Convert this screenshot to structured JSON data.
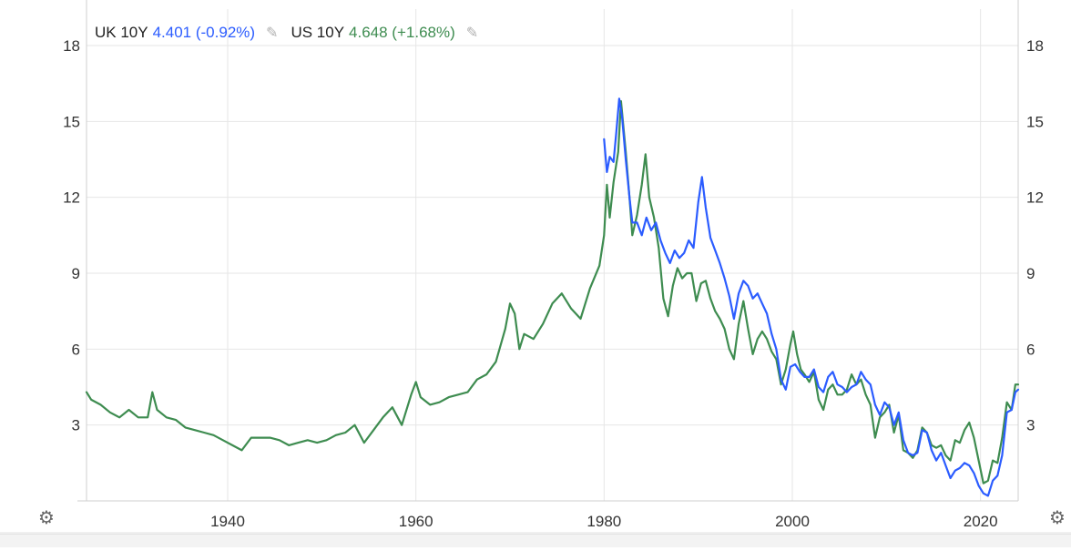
{
  "legend": {
    "series_a_name": "UK 10Y",
    "series_a_value": "4.401 (-0.92%)",
    "series_b_name": "US 10Y",
    "series_b_value": "4.648 (+1.68%)",
    "edit_icon": "pencil-icon"
  },
  "settings_icon": "gear-icon",
  "colors": {
    "uk": "#2b5cff",
    "us": "#3e8c50",
    "grid": "#e6e6e6",
    "axis_text": "#333333",
    "background": "#ffffff",
    "bottom_bar": "#f3f3f3"
  },
  "chart_data": {
    "type": "line",
    "title": "",
    "xlabel": "",
    "ylabel": "",
    "xlim": [
      1925,
      2024
    ],
    "ylim": [
      0,
      18
    ],
    "x_ticks": [
      "1940",
      "1960",
      "1980",
      "2000",
      "2020"
    ],
    "y_ticks_left": [
      "18",
      "15",
      "12",
      "9",
      "6",
      "3"
    ],
    "y_ticks_right": [
      "18",
      "15",
      "12",
      "9",
      "6",
      "3"
    ],
    "grid": true,
    "legend_position": "top-left",
    "series": [
      {
        "name": "UK 10Y",
        "color": "#2b5cff",
        "points": [
          [
            1980.0,
            14.3
          ],
          [
            1980.3,
            13.0
          ],
          [
            1980.6,
            13.6
          ],
          [
            1981.0,
            13.4
          ],
          [
            1981.3,
            14.6
          ],
          [
            1981.6,
            15.9
          ],
          [
            1981.9,
            15.2
          ],
          [
            1982.3,
            13.5
          ],
          [
            1982.7,
            12.0
          ],
          [
            1983.0,
            11.0
          ],
          [
            1983.5,
            11.0
          ],
          [
            1984.0,
            10.5
          ],
          [
            1984.5,
            11.2
          ],
          [
            1985.0,
            10.7
          ],
          [
            1985.5,
            11.0
          ],
          [
            1986.0,
            10.3
          ],
          [
            1986.5,
            9.8
          ],
          [
            1987.0,
            9.4
          ],
          [
            1987.5,
            9.9
          ],
          [
            1988.0,
            9.6
          ],
          [
            1988.5,
            9.8
          ],
          [
            1989.0,
            10.3
          ],
          [
            1989.5,
            10.0
          ],
          [
            1990.0,
            11.8
          ],
          [
            1990.4,
            12.8
          ],
          [
            1990.8,
            11.6
          ],
          [
            1991.3,
            10.4
          ],
          [
            1991.8,
            9.9
          ],
          [
            1992.3,
            9.4
          ],
          [
            1992.8,
            8.8
          ],
          [
            1993.3,
            8.1
          ],
          [
            1993.8,
            7.2
          ],
          [
            1994.3,
            8.2
          ],
          [
            1994.8,
            8.7
          ],
          [
            1995.3,
            8.5
          ],
          [
            1995.8,
            8.0
          ],
          [
            1996.3,
            8.2
          ],
          [
            1996.8,
            7.8
          ],
          [
            1997.3,
            7.4
          ],
          [
            1997.8,
            6.6
          ],
          [
            1998.3,
            6.0
          ],
          [
            1998.8,
            4.8
          ],
          [
            1999.3,
            4.4
          ],
          [
            1999.8,
            5.3
          ],
          [
            2000.3,
            5.4
          ],
          [
            2000.8,
            5.1
          ],
          [
            2001.3,
            4.9
          ],
          [
            2001.8,
            4.9
          ],
          [
            2002.3,
            5.2
          ],
          [
            2002.8,
            4.5
          ],
          [
            2003.3,
            4.3
          ],
          [
            2003.8,
            4.9
          ],
          [
            2004.3,
            5.1
          ],
          [
            2004.8,
            4.6
          ],
          [
            2005.3,
            4.5
          ],
          [
            2005.8,
            4.3
          ],
          [
            2006.3,
            4.5
          ],
          [
            2006.8,
            4.6
          ],
          [
            2007.3,
            5.1
          ],
          [
            2007.8,
            4.8
          ],
          [
            2008.3,
            4.6
          ],
          [
            2008.8,
            3.8
          ],
          [
            2009.3,
            3.4
          ],
          [
            2009.8,
            3.9
          ],
          [
            2010.3,
            3.7
          ],
          [
            2010.8,
            3.0
          ],
          [
            2011.3,
            3.5
          ],
          [
            2011.8,
            2.4
          ],
          [
            2012.3,
            1.9
          ],
          [
            2012.8,
            1.8
          ],
          [
            2013.3,
            1.9
          ],
          [
            2013.8,
            2.8
          ],
          [
            2014.3,
            2.7
          ],
          [
            2014.8,
            2.0
          ],
          [
            2015.3,
            1.6
          ],
          [
            2015.8,
            1.9
          ],
          [
            2016.3,
            1.4
          ],
          [
            2016.8,
            0.9
          ],
          [
            2017.3,
            1.2
          ],
          [
            2017.8,
            1.3
          ],
          [
            2018.3,
            1.5
          ],
          [
            2018.8,
            1.4
          ],
          [
            2019.3,
            1.1
          ],
          [
            2019.8,
            0.6
          ],
          [
            2020.3,
            0.3
          ],
          [
            2020.8,
            0.2
          ],
          [
            2021.3,
            0.8
          ],
          [
            2021.8,
            1.0
          ],
          [
            2022.3,
            1.8
          ],
          [
            2022.8,
            3.5
          ],
          [
            2023.3,
            3.6
          ],
          [
            2023.7,
            4.3
          ],
          [
            2024.0,
            4.4
          ]
        ]
      },
      {
        "name": "US 10Y",
        "color": "#3e8c50",
        "points": [
          [
            1925.0,
            4.3
          ],
          [
            1925.5,
            4.0
          ],
          [
            1926.5,
            3.8
          ],
          [
            1927.5,
            3.5
          ],
          [
            1928.5,
            3.3
          ],
          [
            1929.5,
            3.6
          ],
          [
            1930.5,
            3.3
          ],
          [
            1931.5,
            3.3
          ],
          [
            1932.0,
            4.3
          ],
          [
            1932.5,
            3.6
          ],
          [
            1933.5,
            3.3
          ],
          [
            1934.5,
            3.2
          ],
          [
            1935.5,
            2.9
          ],
          [
            1936.5,
            2.8
          ],
          [
            1937.5,
            2.7
          ],
          [
            1938.5,
            2.6
          ],
          [
            1939.5,
            2.4
          ],
          [
            1940.5,
            2.2
          ],
          [
            1941.5,
            2.0
          ],
          [
            1942.5,
            2.5
          ],
          [
            1943.5,
            2.5
          ],
          [
            1944.5,
            2.5
          ],
          [
            1945.5,
            2.4
          ],
          [
            1946.5,
            2.2
          ],
          [
            1947.5,
            2.3
          ],
          [
            1948.5,
            2.4
          ],
          [
            1949.5,
            2.3
          ],
          [
            1950.5,
            2.4
          ],
          [
            1951.5,
            2.6
          ],
          [
            1952.5,
            2.7
          ],
          [
            1953.5,
            3.0
          ],
          [
            1954.5,
            2.3
          ],
          [
            1955.5,
            2.8
          ],
          [
            1956.5,
            3.3
          ],
          [
            1957.5,
            3.7
          ],
          [
            1958.5,
            3.0
          ],
          [
            1959.5,
            4.2
          ],
          [
            1960.0,
            4.7
          ],
          [
            1960.5,
            4.1
          ],
          [
            1961.5,
            3.8
          ],
          [
            1962.5,
            3.9
          ],
          [
            1963.5,
            4.1
          ],
          [
            1964.5,
            4.2
          ],
          [
            1965.5,
            4.3
          ],
          [
            1966.5,
            4.8
          ],
          [
            1967.5,
            5.0
          ],
          [
            1968.5,
            5.5
          ],
          [
            1969.5,
            6.8
          ],
          [
            1970.0,
            7.8
          ],
          [
            1970.5,
            7.4
          ],
          [
            1971.0,
            6.0
          ],
          [
            1971.5,
            6.6
          ],
          [
            1972.5,
            6.4
          ],
          [
            1973.5,
            7.0
          ],
          [
            1974.5,
            7.8
          ],
          [
            1975.5,
            8.2
          ],
          [
            1976.5,
            7.6
          ],
          [
            1977.5,
            7.2
          ],
          [
            1978.5,
            8.4
          ],
          [
            1979.5,
            9.3
          ],
          [
            1980.0,
            10.5
          ],
          [
            1980.3,
            12.5
          ],
          [
            1980.6,
            11.2
          ],
          [
            1981.0,
            12.6
          ],
          [
            1981.5,
            13.8
          ],
          [
            1981.8,
            15.8
          ],
          [
            1982.3,
            13.8
          ],
          [
            1982.7,
            12.0
          ],
          [
            1983.0,
            10.5
          ],
          [
            1983.5,
            11.3
          ],
          [
            1984.0,
            12.5
          ],
          [
            1984.4,
            13.7
          ],
          [
            1984.8,
            12.0
          ],
          [
            1985.3,
            11.2
          ],
          [
            1985.8,
            10.0
          ],
          [
            1986.3,
            8.0
          ],
          [
            1986.8,
            7.3
          ],
          [
            1987.3,
            8.5
          ],
          [
            1987.8,
            9.2
          ],
          [
            1988.3,
            8.8
          ],
          [
            1988.8,
            9.0
          ],
          [
            1989.3,
            9.0
          ],
          [
            1989.8,
            7.9
          ],
          [
            1990.3,
            8.6
          ],
          [
            1990.8,
            8.7
          ],
          [
            1991.3,
            8.0
          ],
          [
            1991.8,
            7.5
          ],
          [
            1992.3,
            7.2
          ],
          [
            1992.8,
            6.8
          ],
          [
            1993.3,
            6.0
          ],
          [
            1993.8,
            5.6
          ],
          [
            1994.3,
            7.0
          ],
          [
            1994.8,
            7.9
          ],
          [
            1995.3,
            6.8
          ],
          [
            1995.8,
            5.8
          ],
          [
            1996.3,
            6.4
          ],
          [
            1996.8,
            6.7
          ],
          [
            1997.3,
            6.4
          ],
          [
            1997.8,
            5.9
          ],
          [
            1998.3,
            5.6
          ],
          [
            1998.8,
            4.6
          ],
          [
            1999.3,
            5.2
          ],
          [
            1999.8,
            6.2
          ],
          [
            2000.1,
            6.7
          ],
          [
            2000.5,
            5.8
          ],
          [
            2000.9,
            5.2
          ],
          [
            2001.3,
            5.0
          ],
          [
            2001.8,
            4.7
          ],
          [
            2002.3,
            5.1
          ],
          [
            2002.8,
            4.0
          ],
          [
            2003.3,
            3.6
          ],
          [
            2003.8,
            4.4
          ],
          [
            2004.3,
            4.6
          ],
          [
            2004.8,
            4.2
          ],
          [
            2005.3,
            4.2
          ],
          [
            2005.8,
            4.4
          ],
          [
            2006.3,
            5.0
          ],
          [
            2006.8,
            4.6
          ],
          [
            2007.3,
            4.8
          ],
          [
            2007.8,
            4.2
          ],
          [
            2008.3,
            3.8
          ],
          [
            2008.8,
            2.5
          ],
          [
            2009.3,
            3.3
          ],
          [
            2009.8,
            3.5
          ],
          [
            2010.3,
            3.8
          ],
          [
            2010.8,
            2.7
          ],
          [
            2011.3,
            3.4
          ],
          [
            2011.8,
            2.0
          ],
          [
            2012.3,
            1.9
          ],
          [
            2012.8,
            1.7
          ],
          [
            2013.3,
            2.0
          ],
          [
            2013.8,
            2.9
          ],
          [
            2014.3,
            2.7
          ],
          [
            2014.8,
            2.2
          ],
          [
            2015.3,
            2.1
          ],
          [
            2015.8,
            2.2
          ],
          [
            2016.3,
            1.8
          ],
          [
            2016.8,
            1.6
          ],
          [
            2017.3,
            2.4
          ],
          [
            2017.8,
            2.3
          ],
          [
            2018.3,
            2.8
          ],
          [
            2018.8,
            3.1
          ],
          [
            2019.3,
            2.5
          ],
          [
            2019.8,
            1.6
          ],
          [
            2020.3,
            0.7
          ],
          [
            2020.8,
            0.8
          ],
          [
            2021.3,
            1.6
          ],
          [
            2021.8,
            1.5
          ],
          [
            2022.3,
            2.5
          ],
          [
            2022.8,
            3.9
          ],
          [
            2023.3,
            3.6
          ],
          [
            2023.7,
            4.6
          ],
          [
            2024.0,
            4.6
          ]
        ]
      }
    ]
  }
}
